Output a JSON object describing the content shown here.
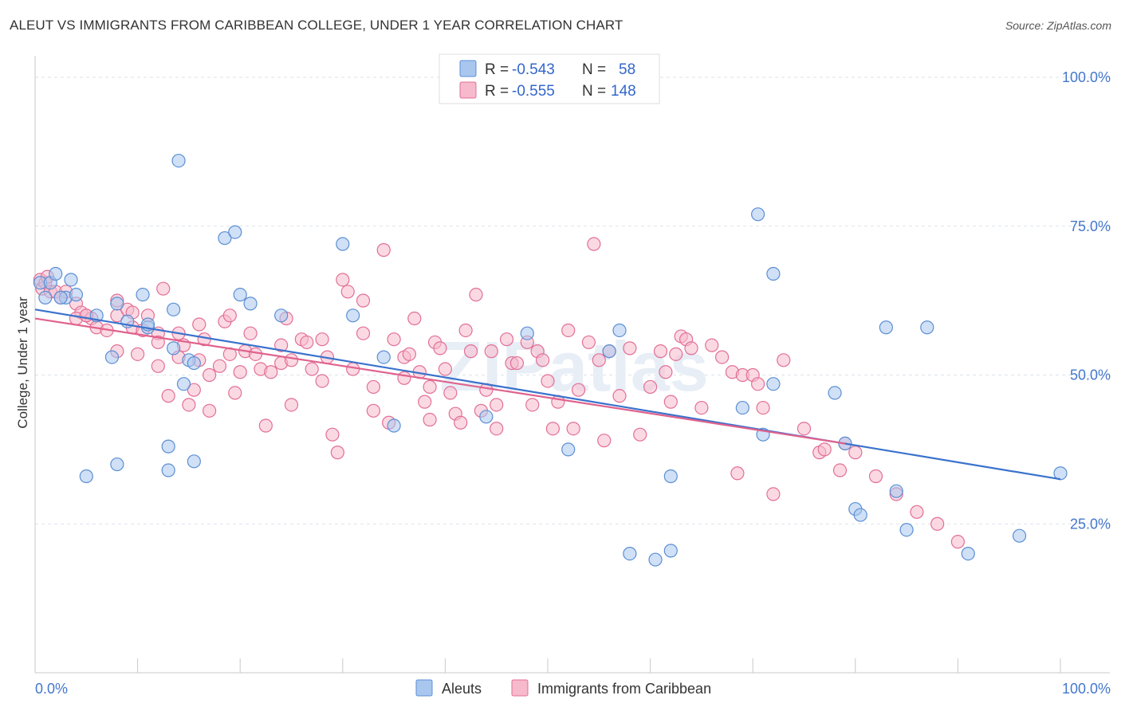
{
  "title": "ALEUT VS IMMIGRANTS FROM CARIBBEAN COLLEGE, UNDER 1 YEAR CORRELATION CHART",
  "source": "Source: ZipAtlas.com",
  "watermark": "ZIPatlas",
  "colors": {
    "aleut": "#5b8fd4",
    "aleut_fill": "#a9c7ee",
    "carib": "#e26f96",
    "carib_fill": "#f7b9cc",
    "tick": "#4477cc"
  },
  "legend": {
    "r_label": "R =",
    "n_label": "N =",
    "rows": [
      {
        "r": "-0.543",
        "n": "58"
      },
      {
        "r": "-0.555",
        "n": "148"
      }
    ]
  },
  "chart_data": {
    "type": "scatter",
    "title": "ALEUT VS IMMIGRANTS FROM CARIBBEAN COLLEGE, UNDER 1 YEAR CORRELATION CHART",
    "xlabel": "",
    "ylabel": "College, Under 1 year",
    "xlim": [
      0,
      100
    ],
    "ylim": [
      0,
      105
    ],
    "x_tick_labels": [
      "0.0%",
      "100.0%"
    ],
    "y_ticks": [
      25,
      50,
      75,
      100
    ],
    "y_tick_labels": [
      "25.0%",
      "50.0%",
      "75.0%",
      "100.0%"
    ],
    "grid": true,
    "legend_position": "top-center",
    "series": [
      {
        "name": "Aleuts",
        "color": "#5b8fd4",
        "trend": {
          "x": [
            0,
            100
          ],
          "y": [
            61.0,
            32.5
          ]
        },
        "points": [
          [
            0.5,
            65.5
          ],
          [
            1.5,
            65.5
          ],
          [
            2,
            67
          ],
          [
            3,
            63
          ],
          [
            2.5,
            63
          ],
          [
            3.5,
            66
          ],
          [
            4,
            63.5
          ],
          [
            1,
            63
          ],
          [
            6,
            60
          ],
          [
            8,
            62
          ],
          [
            7.5,
            53
          ],
          [
            9,
            59
          ],
          [
            8,
            35
          ],
          [
            5,
            33
          ],
          [
            10.5,
            63.5
          ],
          [
            11,
            58
          ],
          [
            11,
            58.5
          ],
          [
            13,
            38
          ],
          [
            13,
            34
          ],
          [
            13.5,
            54.5
          ],
          [
            14,
            86
          ],
          [
            13.5,
            61
          ],
          [
            14.5,
            48.5
          ],
          [
            15,
            52.5
          ],
          [
            15.5,
            52
          ],
          [
            15.5,
            35.5
          ],
          [
            18.5,
            73
          ],
          [
            19.5,
            74
          ],
          [
            20,
            63.5
          ],
          [
            21,
            62
          ],
          [
            24,
            60
          ],
          [
            30,
            72
          ],
          [
            31,
            60
          ],
          [
            34,
            53
          ],
          [
            35,
            41.5
          ],
          [
            44,
            43
          ],
          [
            48,
            57
          ],
          [
            52,
            37.5
          ],
          [
            56,
            54
          ],
          [
            57,
            57.5
          ],
          [
            58,
            20
          ],
          [
            60.5,
            19
          ],
          [
            62,
            33
          ],
          [
            62,
            20.5
          ],
          [
            69,
            44.5
          ],
          [
            70.5,
            77
          ],
          [
            72,
            67
          ],
          [
            71,
            40
          ],
          [
            72,
            48.5
          ],
          [
            78,
            47
          ],
          [
            79,
            38.5
          ],
          [
            80,
            27.5
          ],
          [
            80.5,
            26.5
          ],
          [
            83,
            58
          ],
          [
            84,
            30.5
          ],
          [
            85,
            24
          ],
          [
            87,
            58
          ],
          [
            91,
            20
          ],
          [
            96,
            23
          ],
          [
            100,
            33.5
          ]
        ]
      },
      {
        "name": "Immigrants from Caribbean",
        "color": "#e26f96",
        "trend": {
          "x": [
            0,
            79
          ],
          "y": [
            59.5,
            38.5
          ]
        },
        "points": [
          [
            0.5,
            66
          ],
          [
            0.7,
            64.5
          ],
          [
            1,
            65.5
          ],
          [
            1.5,
            64
          ],
          [
            1.2,
            66.5
          ],
          [
            2,
            64
          ],
          [
            2.5,
            63
          ],
          [
            3,
            64
          ],
          [
            4,
            62
          ],
          [
            4.5,
            60.5
          ],
          [
            5,
            60
          ],
          [
            5.5,
            59.5
          ],
          [
            4,
            59.5
          ],
          [
            5,
            60
          ],
          [
            6,
            58
          ],
          [
            7,
            57.5
          ],
          [
            8,
            62.5
          ],
          [
            8,
            60
          ],
          [
            9,
            61
          ],
          [
            9.5,
            60.5
          ],
          [
            9.5,
            58
          ],
          [
            8,
            54
          ],
          [
            10,
            53.5
          ],
          [
            10.5,
            57.5
          ],
          [
            11,
            60
          ],
          [
            12,
            51.5
          ],
          [
            12,
            57
          ],
          [
            12.5,
            64.5
          ],
          [
            12,
            55.5
          ],
          [
            13,
            46.5
          ],
          [
            14,
            53
          ],
          [
            14,
            57
          ],
          [
            14.5,
            55
          ],
          [
            15,
            45
          ],
          [
            15.5,
            47.5
          ],
          [
            16,
            52.5
          ],
          [
            16,
            58.5
          ],
          [
            16.5,
            56
          ],
          [
            17,
            50
          ],
          [
            17,
            44
          ],
          [
            18,
            51.5
          ],
          [
            18.5,
            59
          ],
          [
            19,
            60
          ],
          [
            19,
            53.5
          ],
          [
            19.5,
            47
          ],
          [
            20,
            50.5
          ],
          [
            20.5,
            54
          ],
          [
            21,
            57
          ],
          [
            21.5,
            53.5
          ],
          [
            22,
            51
          ],
          [
            22.5,
            41.5
          ],
          [
            23,
            50.5
          ],
          [
            24,
            55
          ],
          [
            24,
            52
          ],
          [
            24.5,
            59.5
          ],
          [
            25,
            52.5
          ],
          [
            25,
            45
          ],
          [
            26,
            56
          ],
          [
            26.5,
            55.5
          ],
          [
            27,
            51
          ],
          [
            28,
            49
          ],
          [
            28,
            56
          ],
          [
            28.5,
            53
          ],
          [
            29,
            40
          ],
          [
            29.5,
            37
          ],
          [
            30,
            66
          ],
          [
            30.5,
            64
          ],
          [
            31,
            51
          ],
          [
            32,
            62.5
          ],
          [
            32,
            57
          ],
          [
            33,
            48
          ],
          [
            33,
            44
          ],
          [
            34,
            71
          ],
          [
            34.5,
            42
          ],
          [
            35,
            56
          ],
          [
            36,
            53
          ],
          [
            36,
            49.5
          ],
          [
            36.5,
            53.5
          ],
          [
            37,
            59.5
          ],
          [
            37.5,
            50.5
          ],
          [
            38,
            45.5
          ],
          [
            38.5,
            48
          ],
          [
            38.5,
            42.5
          ],
          [
            39,
            55.5
          ],
          [
            39.5,
            54.5
          ],
          [
            40,
            51
          ],
          [
            40.5,
            47
          ],
          [
            41,
            43.5
          ],
          [
            41.5,
            42
          ],
          [
            42,
            57.5
          ],
          [
            42.5,
            54
          ],
          [
            43,
            63.5
          ],
          [
            43.5,
            44
          ],
          [
            44,
            47.5
          ],
          [
            44.5,
            54
          ],
          [
            45,
            45
          ],
          [
            45,
            41
          ],
          [
            46,
            56
          ],
          [
            46.5,
            52
          ],
          [
            47,
            52
          ],
          [
            48,
            55.5
          ],
          [
            48.5,
            45
          ],
          [
            49,
            54
          ],
          [
            49.5,
            52.5
          ],
          [
            50,
            49
          ],
          [
            50.5,
            41
          ],
          [
            51,
            45.5
          ],
          [
            52,
            57.5
          ],
          [
            52.5,
            41
          ],
          [
            53,
            47.5
          ],
          [
            54,
            55.5
          ],
          [
            54.5,
            72
          ],
          [
            55,
            52.5
          ],
          [
            55.5,
            39
          ],
          [
            56,
            54
          ],
          [
            57,
            46.5
          ],
          [
            58,
            54.5
          ],
          [
            59,
            40
          ],
          [
            60,
            48
          ],
          [
            61,
            54
          ],
          [
            61.5,
            50.5
          ],
          [
            62,
            45.5
          ],
          [
            62.5,
            53.5
          ],
          [
            63,
            56.5
          ],
          [
            63.5,
            56
          ],
          [
            64,
            54.5
          ],
          [
            65,
            44.5
          ],
          [
            66,
            55
          ],
          [
            67,
            53
          ],
          [
            68,
            50.5
          ],
          [
            68.5,
            33.5
          ],
          [
            69,
            50
          ],
          [
            70,
            50
          ],
          [
            70.5,
            48.5
          ],
          [
            71,
            44.5
          ],
          [
            72,
            30
          ],
          [
            73,
            52.5
          ],
          [
            75,
            41
          ],
          [
            76.5,
            37
          ],
          [
            77,
            37.5
          ],
          [
            78.5,
            34
          ],
          [
            79,
            38.5
          ],
          [
            80,
            37
          ],
          [
            82,
            33
          ],
          [
            84,
            30
          ],
          [
            86,
            27
          ],
          [
            88,
            25
          ],
          [
            90,
            22
          ]
        ]
      }
    ]
  },
  "bottom_legend": [
    "Aleuts",
    "Immigrants from Caribbean"
  ]
}
